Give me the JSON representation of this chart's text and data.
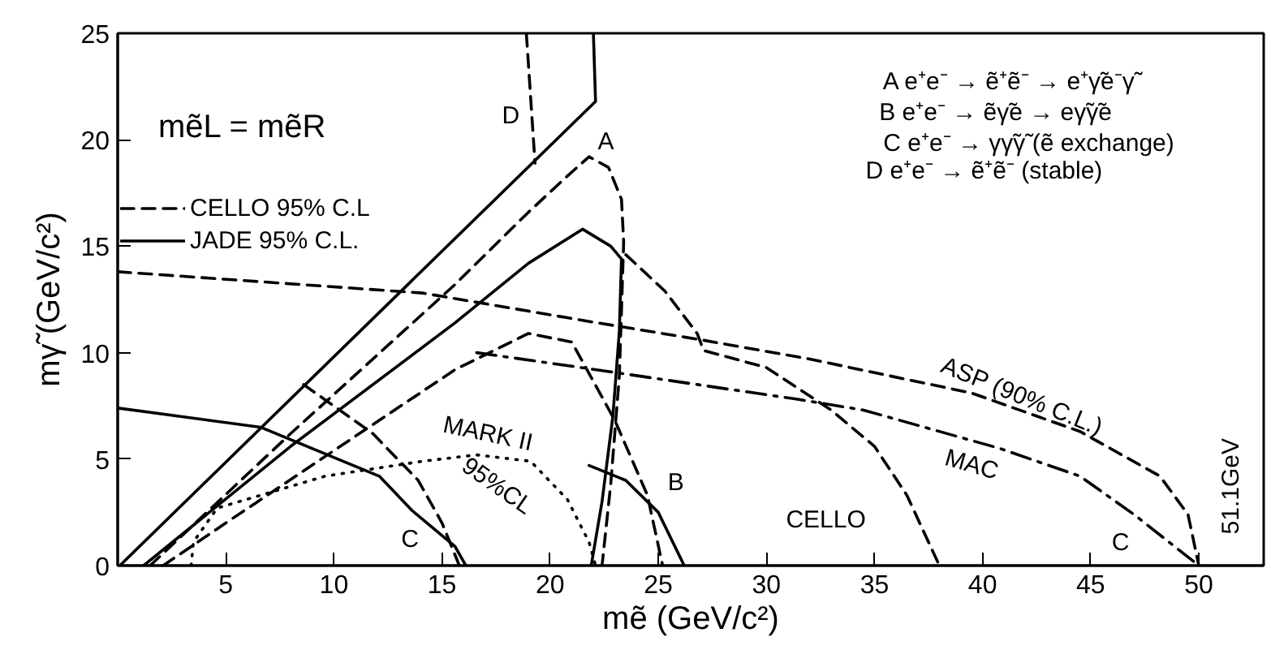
{
  "chart_data": {
    "type": "line",
    "xlabel": "mẽ (GeV/c²)",
    "ylabel": "mγ̃ (GeV/c²)",
    "xlim": [
      0,
      53
    ],
    "ylim": [
      0,
      25
    ],
    "xticks": [
      5,
      10,
      15,
      20,
      25,
      30,
      35,
      40,
      45,
      50
    ],
    "yticks": [
      0,
      5,
      10,
      15,
      20,
      25
    ],
    "grid": false,
    "legend": "top left",
    "series": [
      {
        "name": "CELLO 95% C.L",
        "color": "#000000",
        "line_style": "dashed",
        "x": [
          18.9,
          19.3
        ],
        "values": [
          25,
          18.9
        ]
      },
      {
        "name": "JADE 95% C.L.",
        "color": "#000000",
        "line_style": "solid",
        "x": [
          0.1,
          22.1,
          22.0
        ],
        "values": [
          0,
          21.8,
          25
        ]
      },
      {
        "color": "#000000",
        "line_style": "dashed",
        "x": [
          1.5,
          8,
          15.6,
          19,
          20.8,
          21.8,
          22.7,
          23.3,
          23.4,
          23.3,
          23.2,
          22.8,
          22.4
        ],
        "values": [
          0,
          6.2,
          13.2,
          16.6,
          18.3,
          19.2,
          18.7,
          17.2,
          15.2,
          12,
          8.9,
          3.8,
          0
        ]
      },
      {
        "color": "#000000",
        "line_style": "solid",
        "x": [
          1.2,
          8,
          15.6,
          19,
          21.5,
          22.8,
          23.3,
          23.2,
          22.9,
          22.4,
          21.9
        ],
        "values": [
          0,
          5.6,
          11.4,
          14.2,
          15.8,
          15.0,
          14.4,
          11,
          7,
          3,
          0
        ]
      },
      {
        "color": "#000000",
        "line_style": "dashed",
        "x": [
          23.5,
          25.3,
          26.8,
          27.1,
          30.0,
          33.0,
          35.0,
          36.5,
          38.0
        ],
        "values": [
          14.6,
          12.9,
          10.9,
          10.1,
          9.3,
          7.3,
          5.6,
          3.3,
          0
        ]
      },
      {
        "color": "#000000",
        "line_style": "dashed",
        "x": [
          2.1,
          5,
          10,
          15.6,
          19,
          21,
          23,
          24.5,
          25.2
        ],
        "values": [
          0,
          2.0,
          5.4,
          9.2,
          10.9,
          10.5,
          6.8,
          3.3,
          0
        ]
      },
      {
        "color": "#000000",
        "line_style": "solid",
        "x": [
          21.8,
          23.5,
          25,
          26.2
        ],
        "values": [
          4.7,
          4.0,
          2.5,
          0
        ]
      },
      {
        "color": "#000000",
        "line_style": "dashed",
        "x": [
          0,
          14.1,
          21.6,
          27,
          32,
          39.5,
          44.5,
          48.2,
          49.5,
          50
        ],
        "values": [
          13.8,
          12.8,
          11.5,
          10.6,
          9.7,
          8.1,
          6.3,
          4.2,
          2.4,
          0
        ]
      },
      {
        "color": "#000000",
        "line_style": "dashdot",
        "x": [
          16.6,
          22.8,
          31.5,
          34.5,
          40.8,
          44.5,
          47,
          50
        ],
        "values": [
          10.0,
          9.1,
          7.8,
          7.3,
          5.5,
          4.2,
          2.4,
          0
        ]
      },
      {
        "color": "#000000",
        "line_style": "solid",
        "x": [
          0,
          6.6,
          12.1,
          13.6,
          15.6,
          16.1
        ],
        "values": [
          7.4,
          6.5,
          4.2,
          2.6,
          0.9,
          0
        ]
      },
      {
        "color": "#000000",
        "line_style": "dotted",
        "x": [
          3.4,
          3.5,
          4.6,
          9.6,
          14.1,
          16.6,
          19.1,
          20.8,
          21.8,
          22.1
        ],
        "values": [
          0,
          1.1,
          2.7,
          4.2,
          4.9,
          5.2,
          4.9,
          3.1,
          1.1,
          0
        ]
      },
      {
        "color": "#000000",
        "line_style": "dashed",
        "x": [
          8.6,
          11.8,
          13.9,
          15.0,
          15.8
        ],
        "values": [
          8.5,
          6.2,
          4.0,
          2.0,
          0
        ]
      }
    ],
    "annotations": [
      "mẽL = mẽR",
      "A e⁺e⁻ → ẽ⁺ẽ⁻ → e⁺γ̃e⁻γ̃",
      "B e⁺e⁻ → ẽγ̃e → eγ̃γ̃e",
      "C e⁺e⁻ → γγ̃γ̃ (ẽ exchange)",
      "D e⁺e⁻ → ẽ⁺ẽ⁻ (stable)",
      "A",
      "D",
      "B",
      "C",
      "C",
      "CELLO",
      "ASP (90% C.L.)",
      "MAC",
      "MARK II",
      "95%CL",
      "51.1GeV"
    ]
  }
}
